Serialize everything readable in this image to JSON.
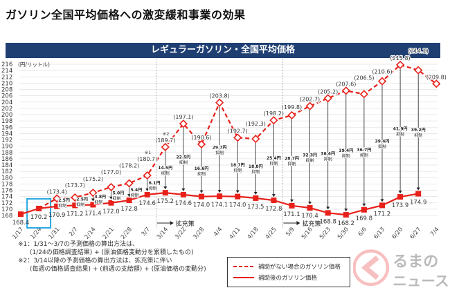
{
  "header": {
    "title": "ガソリン全国平均価格への激変緩和事業の効果"
  },
  "banner": "レギュラーガソリン・全国平均価格",
  "chart_data": {
    "type": "line",
    "title": "レギュラーガソリン・全国平均価格",
    "ylabel": "(円/リットル)",
    "ylim": [
      168,
      216
    ],
    "ytick_step": 2,
    "grid": true,
    "legend_position": "bottom-right",
    "categories": [
      "1/17",
      "1/24",
      "1/31",
      "2/7",
      "2/14",
      "2/21",
      "2/28",
      "3/7",
      "3/14",
      "3/22",
      "3/28",
      "4/4",
      "4/11",
      "4/18",
      "4/25",
      "5/9",
      "5/16",
      "5/23",
      "5/30",
      "6/6",
      "6/13",
      "6/20",
      "6/27",
      "7/4"
    ],
    "series": [
      {
        "name": "補助がない場合のガソリン価格",
        "style": "dashed",
        "color": "#e8201a",
        "values": [
          null,
          null,
          173.4,
          173.7,
          175.2,
          177.0,
          178.2,
          180.7,
          189.7,
          197.1,
          190.6,
          203.8,
          192.7,
          192.3,
          198.2,
          199.8,
          202.7,
          205.2,
          207.6,
          206.5,
          210.6,
          215.8,
          214.1,
          209.8
        ]
      },
      {
        "name": "補助後のガソリン価格",
        "style": "solid",
        "color": "#e8201a",
        "values": [
          168.4,
          170.2,
          170.9,
          171.2,
          171.4,
          172.0,
          172.8,
          174.6,
          175.2,
          174.6,
          174.0,
          174.1,
          174.0,
          173.5,
          172.8,
          171.1,
          170.4,
          168.8,
          168.2,
          169.8,
          171.2,
          173.9,
          174.9,
          null
        ]
      }
    ],
    "suppression_unit": "円",
    "suppression_suffix": "抑制",
    "suppression": [
      null,
      null,
      2.5,
      2.5,
      3.8,
      5.0,
      5.4,
      6.1,
      14.5,
      22.5,
      16.6,
      29.7,
      18.7,
      18.8,
      25.4,
      28.7,
      32.3,
      36.4,
      39.4,
      36.7,
      39.4,
      41.9,
      39.2,
      null
    ],
    "annotations": [
      {
        "category": "3/7",
        "text": "※1"
      },
      {
        "category": "3/14",
        "text": "※2"
      }
    ],
    "expansion_label": "拡充策",
    "highlighted_category": "1/24",
    "highlight_color": "#29a8e0"
  },
  "notes": [
    "※1：1/31～3/7の予測価格の算出方法は、",
    "(1/24の価格調査結果) + (原油価格変動分を累積したもの)",
    "※2：3/14以降の予測価格の算出方法は、拡充策に伴い",
    "(毎週の価格調査結果) + (前週の支給額) + (原油価格の変動分)"
  ],
  "legend": {
    "dashed": "補助がない場合のガソリン価格",
    "solid": "補助後のガソリン価格"
  },
  "watermark": "くるまのニュース"
}
